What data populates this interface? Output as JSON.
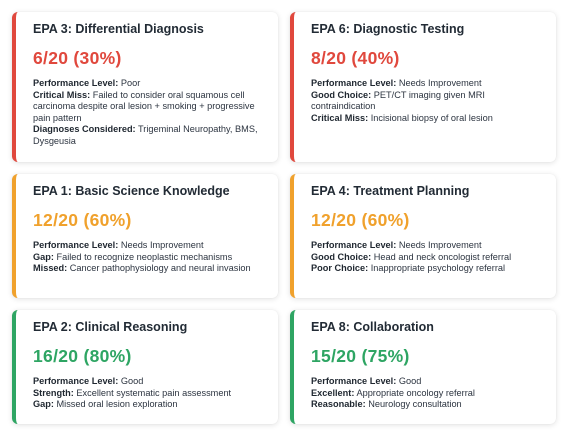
{
  "cards": [
    {
      "title": "EPA 3: Differential Diagnosis",
      "score": "6/20 (30%)",
      "color": "#e0483d",
      "lines": [
        {
          "label": "Performance Level:",
          "value": "Poor"
        },
        {
          "label": "Critical Miss:",
          "value": "Failed to consider oral squamous cell carcinoma despite oral lesion + smoking + progressive pain pattern"
        },
        {
          "label": "Diagnoses Considered:",
          "value": "Trigeminal Neuropathy, BMS, Dysgeusia"
        }
      ]
    },
    {
      "title": "EPA 6: Diagnostic Testing",
      "score": "8/20 (40%)",
      "color": "#e0483d",
      "lines": [
        {
          "label": "Performance Level:",
          "value": "Needs Improvement"
        },
        {
          "label": "Good Choice:",
          "value": "PET/CT imaging given MRI contraindication"
        },
        {
          "label": "Critical Miss:",
          "value": "Incisional biopsy of oral lesion"
        }
      ]
    },
    {
      "title": "EPA 1: Basic Science Knowledge",
      "score": "12/20 (60%)",
      "color": "#f0a12c",
      "lines": [
        {
          "label": "Performance Level:",
          "value": "Needs Improvement"
        },
        {
          "label": "Gap:",
          "value": "Failed to recognize neoplastic mechanisms"
        },
        {
          "label": "Missed:",
          "value": "Cancer pathophysiology and neural invasion"
        }
      ]
    },
    {
      "title": "EPA 4: Treatment Planning",
      "score": "12/20 (60%)",
      "color": "#f0a12c",
      "lines": [
        {
          "label": "Performance Level:",
          "value": "Needs Improvement"
        },
        {
          "label": "Good Choice:",
          "value": "Head and neck oncologist referral"
        },
        {
          "label": "Poor Choice:",
          "value": "Inappropriate psychology referral"
        }
      ]
    },
    {
      "title": "EPA 2: Clinical Reasoning",
      "score": "16/20 (80%)",
      "color": "#2ea563",
      "lines": [
        {
          "label": "Performance Level:",
          "value": "Good"
        },
        {
          "label": "Strength:",
          "value": "Excellent systematic pain assessment"
        },
        {
          "label": "Gap:",
          "value": "Missed oral lesion exploration"
        }
      ]
    },
    {
      "title": "EPA 8: Collaboration",
      "score": "15/20 (75%)",
      "color": "#2ea563",
      "lines": [
        {
          "label": "Performance Level:",
          "value": "Good"
        },
        {
          "label": "Excellent:",
          "value": "Appropriate oncology referral"
        },
        {
          "label": "Reasonable:",
          "value": "Neurology consultation"
        }
      ]
    }
  ]
}
